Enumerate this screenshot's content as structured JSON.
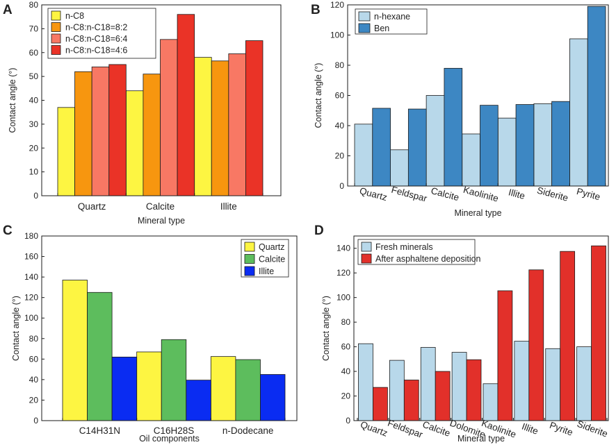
{
  "panels": [
    {
      "letter": "A",
      "chart_data": {
        "type": "bar",
        "categories": [
          "Quartz",
          "Calcite",
          "Illite"
        ],
        "series": [
          {
            "name": "n-C8",
            "color": "#fdf542",
            "values": [
              37,
              44,
              58
            ]
          },
          {
            "name": "n-C8:n-C18=8:2",
            "color": "#f7960f",
            "values": [
              52,
              51,
              56.5
            ]
          },
          {
            "name": "n-C8:n-C18=6:4",
            "color": "#f87864",
            "values": [
              54,
              65.5,
              59.5
            ]
          },
          {
            "name": "n-C8:n-C18=4:6",
            "color": "#ea3327",
            "values": [
              55,
              76,
              65
            ]
          }
        ],
        "title": "",
        "xlabel": "Mineral type",
        "ylabel": "Contact angle (°)",
        "ylim": [
          0,
          80
        ],
        "yticks": [
          0,
          10,
          20,
          30,
          40,
          50,
          60,
          70,
          80
        ],
        "legend": "top-left",
        "grid": false
      }
    },
    {
      "letter": "B",
      "chart_data": {
        "type": "bar",
        "categories": [
          "Quartz",
          "Feldspar",
          "Calcite",
          "Kaolinite",
          "Illite",
          "Siderite",
          "Pyrite"
        ],
        "series": [
          {
            "name": "n-hexane",
            "color": "#b8d8ea",
            "values": [
              41,
              24,
              60,
              34.5,
              45,
              54.5,
              97.5
            ]
          },
          {
            "name": "Ben",
            "color": "#3d87c3",
            "values": [
              51.5,
              51,
              78,
              53.5,
              54,
              56,
              119
            ]
          }
        ],
        "title": "",
        "xlabel": "Mineral type",
        "ylabel": "Contact angle  (°)",
        "ylim": [
          0,
          120
        ],
        "yticks": [
          0,
          20,
          40,
          60,
          80,
          100,
          120
        ],
        "legend": "top-left",
        "grid": false
      }
    },
    {
      "letter": "C",
      "chart_data": {
        "type": "bar",
        "categories": [
          "C14H31N",
          "C16H28S",
          "n-Dodecane"
        ],
        "series": [
          {
            "name": "Quartz",
            "color": "#fdf542",
            "values": [
              137,
              67,
              62.5
            ]
          },
          {
            "name": "Calcite",
            "color": "#5dbd5d",
            "values": [
              125,
              79,
              59.5
            ]
          },
          {
            "name": "Illite",
            "color": "#0a2cf2",
            "values": [
              62,
              39.5,
              45
            ]
          }
        ],
        "title": "",
        "xlabel": "Oil components",
        "ylabel": "Contact angle  (°)",
        "ylim": [
          0,
          180
        ],
        "yticks": [
          0,
          20,
          40,
          60,
          80,
          100,
          120,
          140,
          160,
          180
        ],
        "legend": "top-right",
        "grid": false
      }
    },
    {
      "letter": "D",
      "chart_data": {
        "type": "bar",
        "categories": [
          "Quartz",
          "Feldspar",
          "Calcite",
          "Dolomite",
          "Kaolinite",
          "Illite",
          "Pyrite",
          "Siderite"
        ],
        "series": [
          {
            "name": "Fresh minerals",
            "color": "#b8d8ea",
            "values": [
              62.5,
              49,
              59.5,
              55.5,
              30,
              64.5,
              58.5,
              60
            ]
          },
          {
            "name": "After asphaltene deposition",
            "color": "#e2302a",
            "values": [
              27,
              33,
              40,
              49.5,
              105.5,
              122.5,
              137.5,
              142
            ]
          }
        ],
        "title": "",
        "xlabel": "Mineral type",
        "ylabel": "Contact angle (°)",
        "ylim": [
          0,
          150
        ],
        "yticks": [
          0,
          20,
          40,
          60,
          80,
          100,
          120,
          140
        ],
        "legend": "top-left",
        "grid": false
      }
    }
  ]
}
